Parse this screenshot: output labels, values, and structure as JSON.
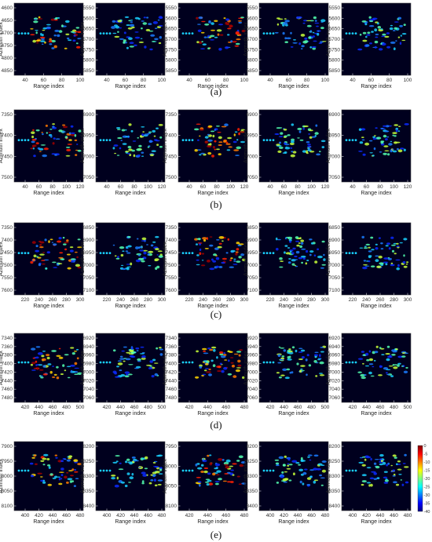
{
  "rows": [
    {
      "caption": "(a)",
      "panels": [
        {
          "x_ticks": [
            "40",
            "60",
            "80",
            "100"
          ],
          "y_ticks": [
            "4600",
            "4650",
            "4700",
            "4750",
            "4800",
            "4850"
          ]
        },
        {
          "x_ticks": [
            "40",
            "60",
            "80",
            "100"
          ],
          "y_ticks": [
            "5550",
            "5600",
            "5650",
            "5700",
            "5750",
            "5800",
            "5850"
          ]
        },
        {
          "x_ticks": [
            "40",
            "60",
            "80",
            "100"
          ],
          "y_ticks": [
            "5550",
            "5600",
            "5650",
            "5700",
            "5750",
            "5800",
            "5850"
          ]
        },
        {
          "x_ticks": [
            "40",
            "60",
            "80",
            "100"
          ],
          "y_ticks": [
            "5550",
            "5600",
            "5650",
            "5700",
            "5750",
            "5800",
            "5850"
          ]
        },
        {
          "x_ticks": [
            "40",
            "60",
            "80",
            "100"
          ],
          "y_ticks": [
            "5550",
            "5600",
            "5650",
            "5700",
            "5750",
            "5800",
            "5850"
          ]
        }
      ]
    },
    {
      "caption": "(b)",
      "panels": [
        {
          "x_ticks": [
            "40",
            "60",
            "80",
            "100",
            "120"
          ],
          "y_ticks": [
            "7350",
            "7400",
            "7450",
            "7500"
          ]
        },
        {
          "x_ticks": [
            "40",
            "60",
            "80",
            "100",
            "120"
          ],
          "y_ticks": [
            "6900",
            "6950",
            "7000",
            "7050"
          ]
        },
        {
          "x_ticks": [
            "40",
            "60",
            "80",
            "100",
            "120"
          ],
          "y_ticks": [
            "7350",
            "7400",
            "7450",
            "7500"
          ]
        },
        {
          "x_ticks": [
            "40",
            "60",
            "80",
            "100",
            "120"
          ],
          "y_ticks": [
            "6900",
            "6950",
            "7000",
            "7050"
          ]
        },
        {
          "x_ticks": [
            "40",
            "60",
            "80",
            "100",
            "120"
          ],
          "y_ticks": [
            "6900",
            "6950",
            "7000",
            "7050"
          ]
        }
      ]
    },
    {
      "caption": "(c)",
      "panels": [
        {
          "x_ticks": [
            "220",
            "240",
            "260",
            "280",
            "300"
          ],
          "y_ticks": [
            "7350",
            "7400",
            "7450",
            "7500",
            "7550",
            "7600"
          ]
        },
        {
          "x_ticks": [
            "220",
            "240",
            "260",
            "280",
            "300"
          ],
          "y_ticks": [
            "6850",
            "6900",
            "6950",
            "7000",
            "7050",
            "7100"
          ]
        },
        {
          "x_ticks": [
            "220",
            "240",
            "260",
            "280",
            "300"
          ],
          "y_ticks": [
            "7350",
            "7400",
            "7450",
            "7500",
            "7550",
            "7600"
          ]
        },
        {
          "x_ticks": [
            "220",
            "240",
            "260",
            "280",
            "300"
          ],
          "y_ticks": [
            "6850",
            "6900",
            "6950",
            "7000",
            "7050",
            "7100"
          ]
        },
        {
          "x_ticks": [
            "220",
            "240",
            "260",
            "280",
            "300"
          ],
          "y_ticks": [
            "6850",
            "6900",
            "6950",
            "7000",
            "7050",
            "7100"
          ]
        }
      ]
    },
    {
      "caption": "(d)",
      "panels": [
        {
          "x_ticks": [
            "420",
            "440",
            "460",
            "480",
            "500"
          ],
          "y_ticks": [
            "7340",
            "7360",
            "7380",
            "7400",
            "7420",
            "7440",
            "7460",
            "7480"
          ]
        },
        {
          "x_ticks": [
            "420",
            "440",
            "460",
            "480",
            "500"
          ],
          "y_ticks": [
            "6920",
            "6940",
            "6960",
            "6980",
            "7000",
            "7020",
            "7040",
            "7060"
          ]
        },
        {
          "x_ticks": [
            "420",
            "440",
            "460",
            "480"
          ],
          "y_ticks": [
            "7340",
            "7360",
            "7380",
            "7400",
            "7420",
            "7440",
            "7460",
            "7480"
          ]
        },
        {
          "x_ticks": [
            "420",
            "440",
            "460",
            "480",
            "500"
          ],
          "y_ticks": [
            "6920",
            "6940",
            "6960",
            "6980",
            "7000",
            "7020",
            "7040",
            "7060"
          ]
        },
        {
          "x_ticks": [
            "420",
            "440",
            "460",
            "480",
            "500"
          ],
          "y_ticks": [
            "6920",
            "6940",
            "6960",
            "6980",
            "7000",
            "7020",
            "7040",
            "7060"
          ]
        }
      ]
    },
    {
      "caption": "(e)",
      "panels": [
        {
          "x_ticks": [
            "400",
            "420",
            "440",
            "460",
            "480"
          ],
          "y_ticks": [
            "7900",
            "7950",
            "8000",
            "8050",
            "8100"
          ]
        },
        {
          "x_ticks": [
            "400",
            "420",
            "440",
            "460",
            "480"
          ],
          "y_ticks": [
            "8200",
            "8250",
            "8300",
            "8350",
            "8400"
          ]
        },
        {
          "x_ticks": [
            "420",
            "440",
            "460",
            "480"
          ],
          "y_ticks": [
            "7950",
            "8000",
            "8050",
            "8100"
          ]
        },
        {
          "x_ticks": [
            "400",
            "420",
            "440",
            "460",
            "480"
          ],
          "y_ticks": [
            "8200",
            "8250",
            "8300",
            "8350",
            "8400"
          ]
        },
        {
          "x_ticks": [
            "400",
            "420",
            "440",
            "460",
            "480"
          ],
          "y_ticks": [
            "8200",
            "8250",
            "8300",
            "8350",
            "8400"
          ]
        }
      ]
    }
  ],
  "axes": {
    "xlabel": "Range index",
    "ylabel": "Azimuth index"
  },
  "colorbar": {
    "ticks": [
      "0",
      "-5",
      "-10",
      "-15",
      "-20",
      "-25",
      "-30",
      "-35",
      "-40"
    ],
    "colors": [
      "#00007f",
      "#0000ff",
      "#007fff",
      "#00ffff",
      "#7fff7f",
      "#ffff00",
      "#ff7f00",
      "#ff0000",
      "#7f0000"
    ]
  },
  "chart_data": {
    "type": "heatmap",
    "title": "",
    "xlabel": "Range index",
    "ylabel": "Azimuth index",
    "rows": [
      "(a)",
      "(b)",
      "(c)",
      "(d)",
      "(e)"
    ],
    "panels_per_row": 5,
    "colorbar_range": [
      -40,
      0
    ]
  }
}
